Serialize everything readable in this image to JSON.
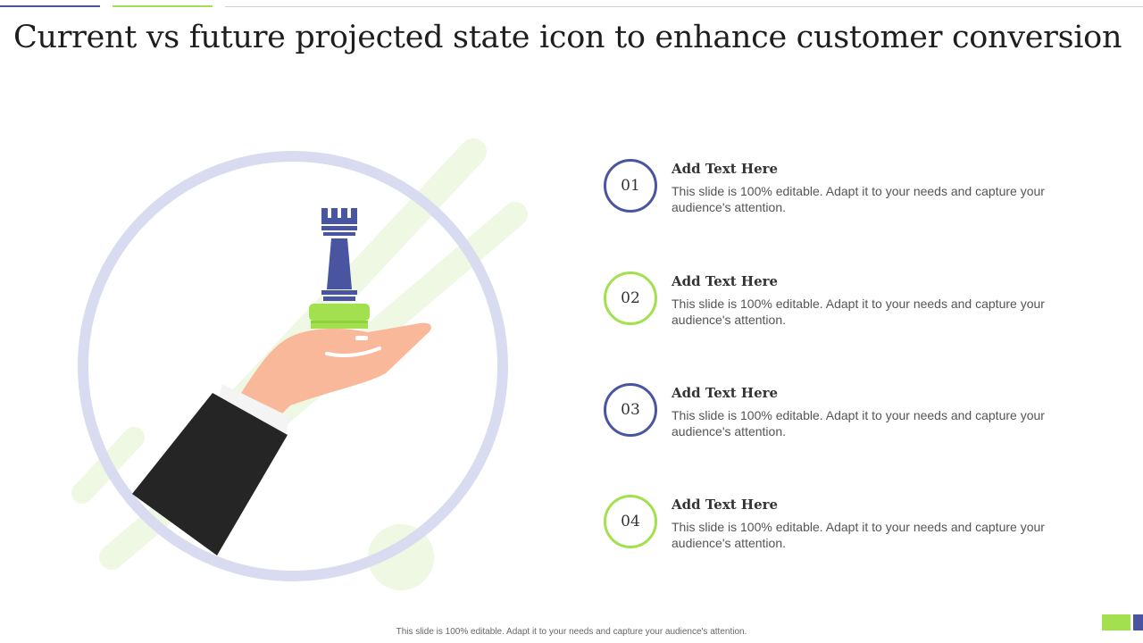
{
  "slide": {
    "title": "Current vs future projected state icon to enhance customer conversion",
    "footer": "This slide is 100% editable. Adapt it to your needs and capture your audience's attention.",
    "illustration": {
      "icons": [
        "hand-icon",
        "rook-chess-piece-icon"
      ],
      "colors": {
        "circle": "#d9dcf1",
        "stripe": "#eef8e2",
        "rook": "#4a55a2",
        "base": "#a3e04f",
        "hand": "#f9b89a",
        "sleeve": "#252525"
      }
    },
    "items": [
      {
        "number": "01",
        "title": "Add Text Here",
        "description": "This slide is 100% editable. Adapt it to your needs and capture your audience's attention.",
        "ring_color": "#4a55a2"
      },
      {
        "number": "02",
        "title": "Add Text Here",
        "description": "This slide is 100% editable. Adapt it to your needs and capture your audience's attention.",
        "ring_color": "#a3e04f"
      },
      {
        "number": "03",
        "title": "Add Text Here",
        "description": "This slide is 100% editable. Adapt it to your needs and capture your audience's attention.",
        "ring_color": "#4a55a2"
      },
      {
        "number": "04",
        "title": "Add Text Here",
        "description": "This slide is 100% editable. Adapt it to your needs and capture your audience's attention.",
        "ring_color": "#a3e04f"
      }
    ]
  }
}
